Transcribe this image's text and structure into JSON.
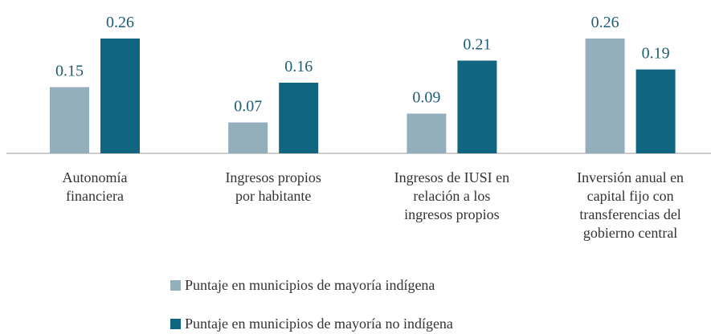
{
  "chart_data": {
    "type": "bar",
    "categories": [
      "Autonomía\nfinanciera",
      "Ingresos propios\npor habitante",
      "Ingresos de IUSI en\nrelación a los\ningresos propios",
      "Inversión anual en\ncapital fijo con\ntransferencias del\ngobierno central"
    ],
    "series": [
      {
        "name": "Puntaje en municipios de mayoría indígena",
        "color": "#94afbc",
        "values": [
          0.15,
          0.07,
          0.09,
          0.26
        ]
      },
      {
        "name": "Puntaje en municipios de mayoría no indígena",
        "color": "#106580",
        "values": [
          0.26,
          0.16,
          0.21,
          0.19
        ]
      }
    ]
  }
}
